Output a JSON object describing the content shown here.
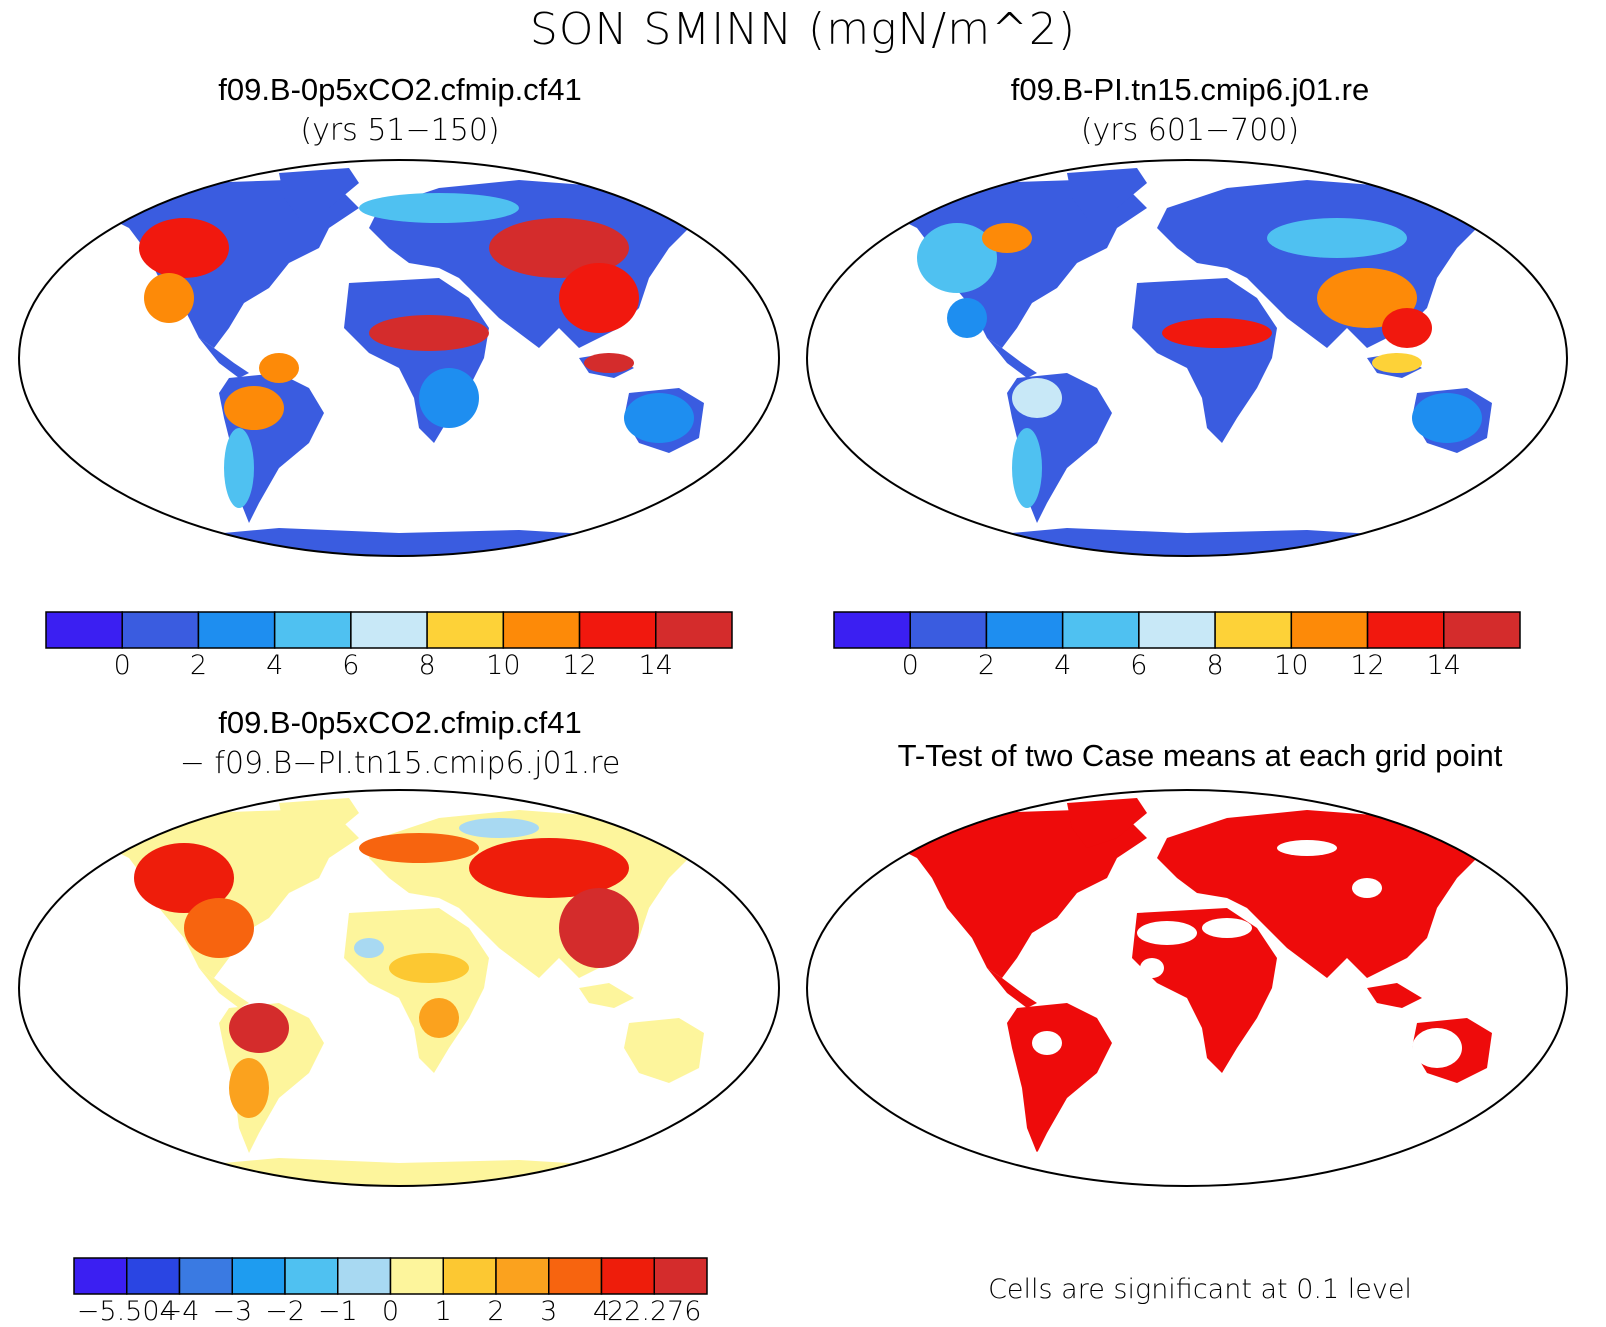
{
  "main_title": "SON SMINN (mgN/m^2)",
  "colors": {
    "abs_scale": [
      "#3b1ff2",
      "#3a5ce0",
      "#1e8ef0",
      "#4fc1f1",
      "#c8e8f7",
      "#fdd238",
      "#fd8a08",
      "#f1180e",
      "#d42c2c"
    ],
    "diff_scale": [
      "#3b1ff2",
      "#2a45e3",
      "#3a7ae2",
      "#1e9cf0",
      "#4fc1f1",
      "#a8d9f2",
      "#fdf59c",
      "#fcc832",
      "#fba21e",
      "#f7640f",
      "#ee1d0b",
      "#d42c2c"
    ],
    "significant": "#ee0b0b"
  },
  "panels": [
    {
      "id": "case1",
      "title": "f09.B-0p5xCO2.cfmip.cf41",
      "subtitle": "(yrs 51−150)",
      "colorbar_labels": [
        "0",
        "2",
        "4",
        "6",
        "8",
        "10",
        "12",
        "14"
      ]
    },
    {
      "id": "case2",
      "title": "f09.B-PI.tn15.cmip6.j01.re",
      "subtitle": "(yrs 601−700)",
      "colorbar_labels": [
        "0",
        "2",
        "4",
        "6",
        "8",
        "10",
        "12",
        "14"
      ]
    },
    {
      "id": "difference",
      "title": "f09.B-0p5xCO2.cfmip.cf41",
      "subtitle": "− f09.B−PI.tn15.cmip6.j01.re",
      "colorbar_labels": [
        "−5.504",
        "−4",
        "−3",
        "−2",
        "−1",
        "0",
        "1",
        "2",
        "3",
        "4",
        "22.276"
      ]
    },
    {
      "id": "ttest",
      "title": "T-Test of two Case means at each grid point",
      "note": "Cells are significant at 0.1 level"
    }
  ]
}
